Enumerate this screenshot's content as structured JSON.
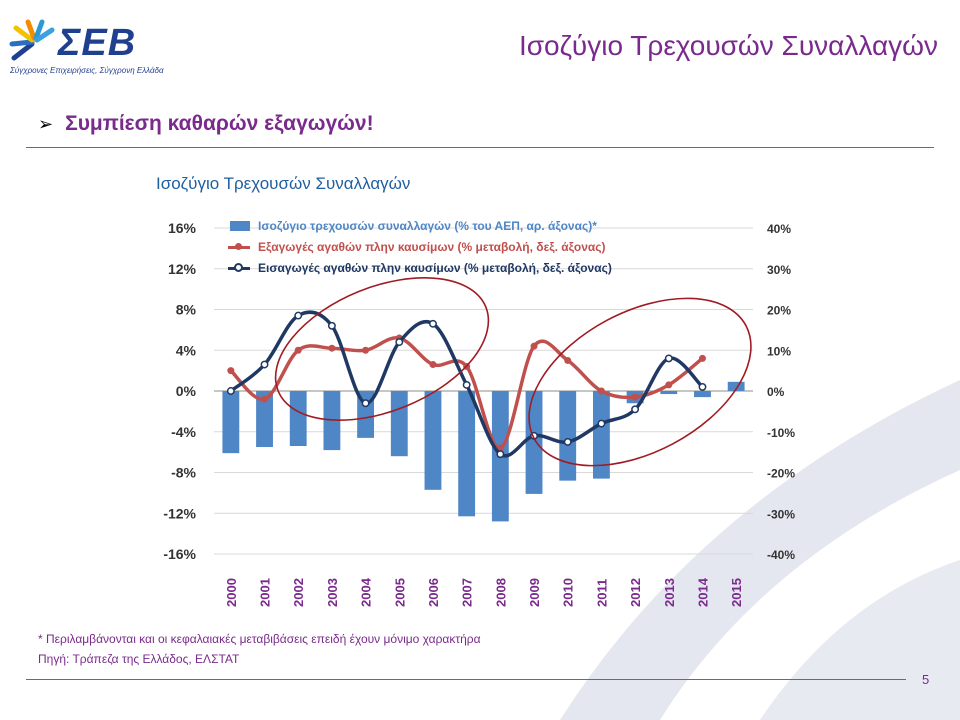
{
  "header": {
    "logo_text": "ΣΕΒ",
    "logo_tagline": "Σύγχρονες Επιχειρήσεις, Σύγχρονη Ελλάδα",
    "title": "Ισοζύγιο Τρεχουσών Συναλλαγών"
  },
  "bullet": {
    "icon": "arrow-bullet-icon",
    "text": "Συμπίεση καθαρών εξαγωγών!"
  },
  "footer": {
    "footnote": "* Περιλαμβάνονται και οι κεφαλαιακές μεταβιβάσεις επειδή έχουν μόνιμο χαρακτήρα",
    "source": "Πηγή: Τράπεζα της Ελλάδος, ΕΛΣΤΑΤ",
    "page_number": "5"
  },
  "colors": {
    "brand_purple": "#7a2a8c",
    "bar_blue": "#4f86c6",
    "exports_red": "#c0504d",
    "imports_navy": "#1f3864",
    "highlight_ellipse": "#a01c24"
  },
  "chart_data": {
    "type": "bar+line",
    "title": "Ισοζύγιο Τρεχουσών Συναλλαγών",
    "categories": [
      "2000",
      "2001",
      "2002",
      "2003",
      "2004",
      "2005",
      "2006",
      "2007",
      "2008",
      "2009",
      "2010",
      "2011",
      "2012",
      "2013",
      "2014",
      "2015"
    ],
    "left_axis": {
      "ylim": [
        -16,
        16
      ],
      "ticks": [
        "16%",
        "12%",
        "8%",
        "4%",
        "0%",
        "-4%",
        "-8%",
        "-12%",
        "-16%"
      ]
    },
    "right_axis": {
      "ylim": [
        -40,
        40
      ],
      "ticks": [
        "40%",
        "30%",
        "20%",
        "10%",
        "0%",
        "-10%",
        "-20%",
        "-30%",
        "-40%"
      ]
    },
    "series": [
      {
        "name": "Ισοζύγιο τρεχουσών συναλλαγών (% του ΑΕΠ, αρ. άξονας)*",
        "type": "bar",
        "axis": "left",
        "values": [
          -6.1,
          -5.5,
          -5.4,
          -5.8,
          -4.6,
          -6.4,
          -9.7,
          -12.3,
          -12.8,
          -10.1,
          -8.8,
          -8.6,
          -1.2,
          -0.3,
          -0.6,
          0.9
        ]
      },
      {
        "name": "Εξαγωγές αγαθών πλην καυσίμων (% μεταβολή, δεξ. άξονας)",
        "type": "line",
        "axis": "right",
        "values": [
          5,
          -2,
          10,
          10.5,
          10,
          13,
          6.5,
          6,
          -14,
          11,
          7.5,
          0,
          -1.5,
          1.5,
          8,
          null
        ]
      },
      {
        "name": "Εισαγωγές αγαθών πλην καυσίμων (% μεταβολή, δεξ. άξονας)",
        "type": "line",
        "axis": "right",
        "values": [
          0,
          6.5,
          18.5,
          16,
          -3,
          12,
          16.5,
          1.5,
          -15.5,
          -11,
          -12.5,
          -8,
          -4.5,
          8,
          1,
          null
        ]
      }
    ],
    "grid": true,
    "legend_position": "top-left"
  }
}
